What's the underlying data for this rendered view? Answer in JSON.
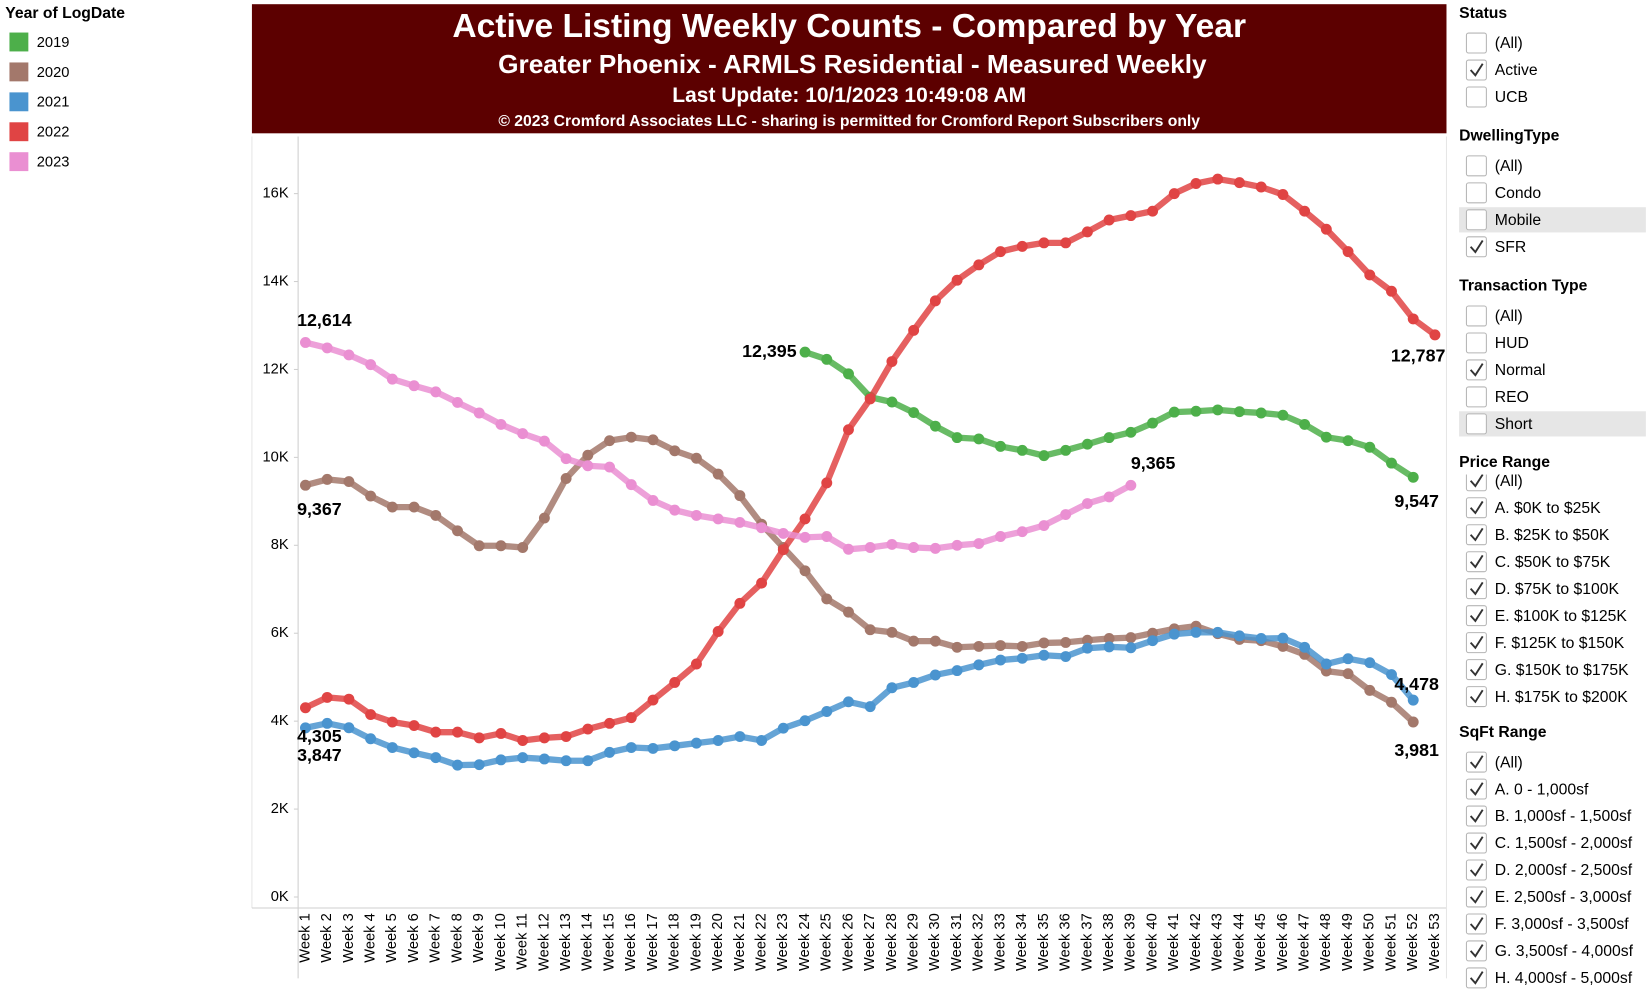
{
  "legend_title": "Year of LogDate",
  "chart_data": {
    "type": "line",
    "title": "Active Listing Weekly Counts - Compared by Year",
    "subtitle": "Greater Phoenix - ARMLS Residential - Measured Weekly",
    "update_note": "Last Update: 10/1/2023 10:49:08 AM",
    "copyright": "© 2023 Cromford Associates LLC - sharing is permitted for Cromford Report Subscribers only",
    "categories": [
      "Week 1",
      "Week 2",
      "Week 3",
      "Week 4",
      "Week 5",
      "Week 6",
      "Week 7",
      "Week 8",
      "Week 9",
      "Week 10",
      "Week 11",
      "Week 12",
      "Week 13",
      "Week 14",
      "Week 15",
      "Week 16",
      "Week 17",
      "Week 18",
      "Week 19",
      "Week 20",
      "Week 21",
      "Week 22",
      "Week 23",
      "Week 24",
      "Week 25",
      "Week 26",
      "Week 27",
      "Week 28",
      "Week 29",
      "Week 30",
      "Week 31",
      "Week 32",
      "Week 33",
      "Week 34",
      "Week 35",
      "Week 36",
      "Week 37",
      "Week 38",
      "Week 39",
      "Week 40",
      "Week 41",
      "Week 42",
      "Week 43",
      "Week 44",
      "Week 45",
      "Week 46",
      "Week 47",
      "Week 48",
      "Week 49",
      "Week 50",
      "Week 51",
      "Week 52",
      "Week 53"
    ],
    "ylim": [
      -250,
      17300
    ],
    "yticks": [
      {
        "value": 0,
        "label": "0K"
      },
      {
        "value": 2000,
        "label": "2K"
      },
      {
        "value": 4000,
        "label": "4K"
      },
      {
        "value": 6000,
        "label": "6K"
      },
      {
        "value": 8000,
        "label": "8K"
      },
      {
        "value": 10000,
        "label": "10K"
      },
      {
        "value": 12000,
        "label": "12K"
      },
      {
        "value": 14000,
        "label": "14K"
      },
      {
        "value": 16000,
        "label": "16K"
      }
    ],
    "grid": false,
    "series": [
      {
        "name": "2019",
        "color": "#4daf4a",
        "values": [
          null,
          null,
          null,
          null,
          null,
          null,
          null,
          null,
          null,
          null,
          null,
          null,
          null,
          null,
          null,
          null,
          null,
          null,
          null,
          null,
          null,
          null,
          null,
          12395,
          12230,
          11900,
          11370,
          11260,
          11020,
          10710,
          10450,
          10420,
          10250,
          10160,
          10040,
          10160,
          10300,
          10450,
          10570,
          10780,
          11030,
          11050,
          11080,
          11040,
          11010,
          10960,
          10750,
          10460,
          10380,
          10230,
          9870,
          9547,
          null
        ],
        "value_labels": [
          null,
          null,
          null,
          null,
          null,
          null,
          null,
          null,
          null,
          null,
          null,
          null,
          null,
          null,
          null,
          null,
          null,
          null,
          null,
          null,
          null,
          null,
          null,
          "12,395",
          null,
          null,
          null,
          null,
          null,
          null,
          null,
          null,
          null,
          null,
          null,
          null,
          null,
          null,
          null,
          null,
          null,
          null,
          null,
          null,
          null,
          null,
          null,
          null,
          null,
          null,
          null,
          "9,547",
          null
        ]
      },
      {
        "name": "2020",
        "color": "#a3786b",
        "values": [
          9367,
          9500,
          9450,
          9120,
          8870,
          8870,
          8680,
          8330,
          7990,
          7990,
          7950,
          8620,
          9520,
          10050,
          10380,
          10460,
          10400,
          10150,
          9980,
          9620,
          9130,
          8480,
          7950,
          7420,
          6780,
          6480,
          6080,
          6020,
          5820,
          5820,
          5680,
          5700,
          5720,
          5700,
          5780,
          5790,
          5840,
          5880,
          5900,
          6000,
          6100,
          6160,
          5990,
          5860,
          5830,
          5700,
          5520,
          5140,
          5080,
          4700,
          4430,
          3981,
          null
        ],
        "value_labels": [
          "9,367",
          null,
          null,
          null,
          null,
          null,
          null,
          null,
          null,
          null,
          null,
          null,
          null,
          null,
          null,
          null,
          null,
          null,
          null,
          null,
          null,
          null,
          null,
          null,
          null,
          null,
          null,
          null,
          null,
          null,
          null,
          null,
          null,
          null,
          null,
          null,
          null,
          null,
          null,
          null,
          null,
          null,
          null,
          null,
          null,
          null,
          null,
          null,
          null,
          null,
          null,
          "3,981",
          null
        ]
      },
      {
        "name": "2021",
        "color": "#4a94cf",
        "values": [
          3847,
          3950,
          3850,
          3600,
          3400,
          3280,
          3170,
          3000,
          3010,
          3120,
          3170,
          3140,
          3100,
          3100,
          3290,
          3400,
          3380,
          3440,
          3500,
          3560,
          3650,
          3560,
          3840,
          4010,
          4220,
          4440,
          4330,
          4760,
          4880,
          5050,
          5150,
          5280,
          5390,
          5430,
          5500,
          5470,
          5660,
          5690,
          5670,
          5830,
          5980,
          6020,
          6020,
          5940,
          5880,
          5890,
          5680,
          5300,
          5420,
          5330,
          5060,
          4478,
          null
        ],
        "value_labels": [
          "3,847",
          null,
          null,
          null,
          null,
          null,
          null,
          null,
          null,
          null,
          null,
          null,
          null,
          null,
          null,
          null,
          null,
          null,
          null,
          null,
          null,
          null,
          null,
          null,
          null,
          null,
          null,
          null,
          null,
          null,
          null,
          null,
          null,
          null,
          null,
          null,
          null,
          null,
          null,
          null,
          null,
          null,
          null,
          null,
          null,
          null,
          null,
          null,
          null,
          null,
          null,
          "4,478",
          null
        ]
      },
      {
        "name": "2022",
        "color": "#e04444",
        "values": [
          4305,
          4540,
          4500,
          4150,
          3980,
          3900,
          3750,
          3750,
          3620,
          3720,
          3560,
          3620,
          3650,
          3820,
          3950,
          4080,
          4480,
          4880,
          5300,
          6040,
          6680,
          7140,
          7900,
          8600,
          9420,
          10630,
          11330,
          12180,
          12890,
          13560,
          14030,
          14380,
          14680,
          14800,
          14880,
          14880,
          15130,
          15400,
          15500,
          15600,
          16000,
          16230,
          16330,
          16250,
          16150,
          15980,
          15600,
          15190,
          14680,
          14150,
          13780,
          13150,
          12787
        ],
        "value_labels": [
          "4,305",
          null,
          null,
          null,
          null,
          null,
          null,
          null,
          null,
          null,
          null,
          null,
          null,
          null,
          null,
          null,
          null,
          null,
          null,
          null,
          null,
          null,
          null,
          null,
          null,
          null,
          null,
          null,
          null,
          null,
          null,
          null,
          null,
          null,
          null,
          null,
          null,
          null,
          null,
          null,
          null,
          null,
          null,
          null,
          null,
          null,
          null,
          null,
          null,
          null,
          null,
          null,
          "12,787"
        ]
      },
      {
        "name": "2023",
        "color": "#ea8fd2",
        "values": [
          12614,
          12490,
          12330,
          12110,
          11780,
          11630,
          11490,
          11250,
          11010,
          10750,
          10540,
          10370,
          9970,
          9810,
          9780,
          9380,
          9020,
          8800,
          8680,
          8600,
          8520,
          8400,
          8270,
          8180,
          8200,
          7910,
          7950,
          8020,
          7950,
          7930,
          8000,
          8040,
          8200,
          8310,
          8450,
          8700,
          8950,
          9100,
          9365,
          null,
          null,
          null,
          null,
          null,
          null,
          null,
          null,
          null,
          null,
          null,
          null,
          null,
          null
        ],
        "value_labels": [
          "12,614",
          null,
          null,
          null,
          null,
          null,
          null,
          null,
          null,
          null,
          null,
          null,
          null,
          null,
          null,
          null,
          null,
          null,
          null,
          null,
          null,
          null,
          null,
          null,
          null,
          null,
          null,
          null,
          null,
          null,
          null,
          null,
          null,
          null,
          null,
          null,
          null,
          null,
          "9,365",
          null,
          null,
          null,
          null,
          null,
          null,
          null,
          null,
          null,
          null,
          null,
          null,
          null,
          null
        ]
      }
    ]
  },
  "filters": [
    {
      "title": "Status",
      "items": [
        {
          "label": "(All)",
          "checked": false
        },
        {
          "label": "Active",
          "checked": true
        },
        {
          "label": "UCB",
          "checked": false
        }
      ]
    },
    {
      "title": "DwellingType",
      "items": [
        {
          "label": "(All)",
          "checked": false
        },
        {
          "label": "Condo",
          "checked": false
        },
        {
          "label": "Mobile",
          "checked": false,
          "highlighted": true
        },
        {
          "label": "SFR",
          "checked": true
        }
      ]
    },
    {
      "title": "Transaction Type",
      "items": [
        {
          "label": "(All)",
          "checked": false
        },
        {
          "label": "HUD",
          "checked": false
        },
        {
          "label": "Normal",
          "checked": true
        },
        {
          "label": "REO",
          "checked": false
        },
        {
          "label": "Short",
          "checked": false,
          "highlighted": true
        }
      ]
    },
    {
      "title": "Price Range",
      "items": [
        {
          "label": "(All)",
          "checked": true
        },
        {
          "label": "A. $0K to $25K",
          "checked": true
        },
        {
          "label": "B. $25K to $50K",
          "checked": true
        },
        {
          "label": "C. $50K to $75K",
          "checked": true
        },
        {
          "label": "D. $75K to $100K",
          "checked": true
        },
        {
          "label": "E. $100K to $125K",
          "checked": true
        },
        {
          "label": "F. $125K to $150K",
          "checked": true
        },
        {
          "label": "G. $150K to $175K",
          "checked": true
        },
        {
          "label": "H. $175K to $200K",
          "checked": true
        }
      ]
    },
    {
      "title": "SqFt Range",
      "items": [
        {
          "label": "(All)",
          "checked": true
        },
        {
          "label": "A. 0 - 1,000sf",
          "checked": true
        },
        {
          "label": "B. 1,000sf - 1,500sf",
          "checked": true
        },
        {
          "label": "C. 1,500sf - 2,000sf",
          "checked": true
        },
        {
          "label": "D. 2,000sf - 2,500sf",
          "checked": true
        },
        {
          "label": "E. 2,500sf - 3,000sf",
          "checked": true
        },
        {
          "label": "F. 3,000sf - 3,500sf",
          "checked": true
        },
        {
          "label": "G. 3,500sf - 4,000sf",
          "checked": true
        },
        {
          "label": "H. 4,000sf - 5,000sf",
          "checked": true
        }
      ]
    }
  ]
}
